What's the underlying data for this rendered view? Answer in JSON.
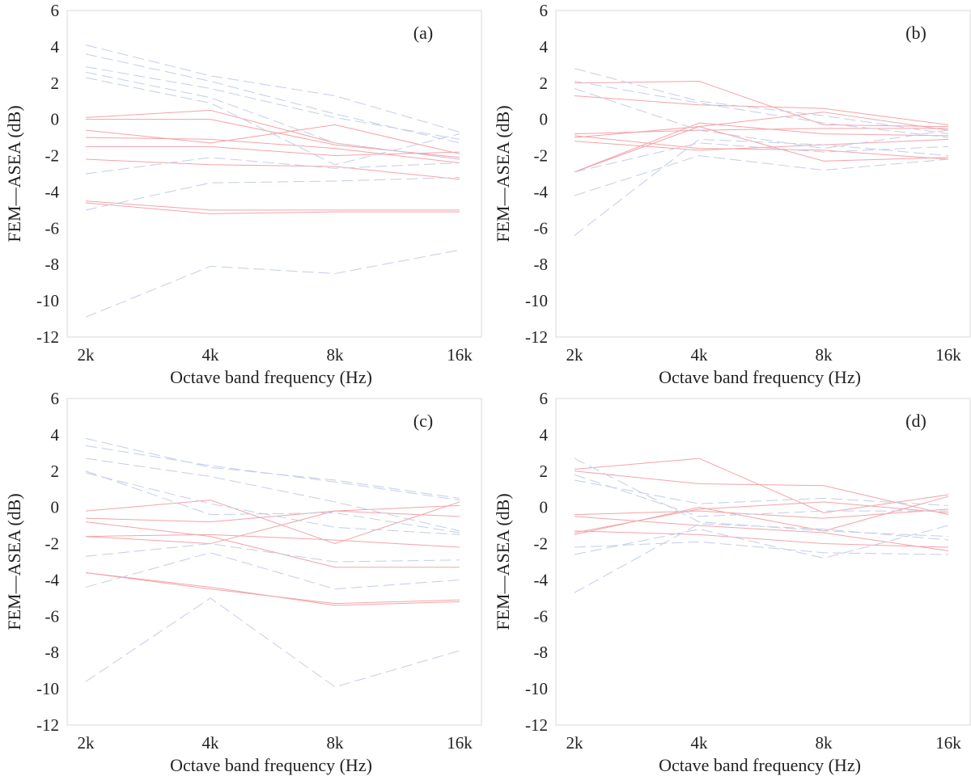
{
  "chart_data": [
    {
      "type": "line",
      "panel_label": "(a)",
      "categories": [
        "2k",
        "4k",
        "8k",
        "16k"
      ],
      "xlabel": "Octave band frequency (Hz)",
      "ylabel": "FEM—ASEA (dB)",
      "ylim": [
        -12,
        6
      ],
      "yticks": [
        "6",
        "4",
        "2",
        "0",
        "-2",
        "-4",
        "-6",
        "-8",
        "-10",
        "-12"
      ],
      "series": [
        {
          "name": "solid-1",
          "style": "solid",
          "color": "#f4a3a8",
          "values": [
            0.1,
            0.5,
            -1.3,
            -2.2
          ]
        },
        {
          "name": "solid-2",
          "style": "solid",
          "color": "#f4a3a8",
          "values": [
            0.0,
            0.0,
            -1.4,
            -2.1
          ]
        },
        {
          "name": "solid-3",
          "style": "solid",
          "color": "#f4a3a8",
          "values": [
            -0.6,
            -1.3,
            -0.3,
            -1.9
          ]
        },
        {
          "name": "solid-4",
          "style": "solid",
          "color": "#f4a3a8",
          "values": [
            -1.0,
            -1.1,
            -1.6,
            -2.4
          ]
        },
        {
          "name": "solid-5",
          "style": "solid",
          "color": "#f4a3a8",
          "values": [
            -1.5,
            -1.5,
            -2.0,
            -1.8
          ]
        },
        {
          "name": "solid-6",
          "style": "solid",
          "color": "#f4a3a8",
          "values": [
            -2.2,
            -2.5,
            -2.6,
            -3.3
          ]
        },
        {
          "name": "solid-7",
          "style": "solid",
          "color": "#f4a3a8",
          "values": [
            -4.5,
            -5.0,
            -5.0,
            -5.0
          ]
        },
        {
          "name": "solid-8",
          "style": "solid",
          "color": "#f4a3a8",
          "values": [
            -4.6,
            -5.2,
            -5.1,
            -5.1
          ]
        },
        {
          "name": "dashed-1",
          "style": "dashed",
          "color": "#c3cde8",
          "values": [
            4.1,
            2.4,
            1.3,
            -0.7
          ]
        },
        {
          "name": "dashed-2",
          "style": "dashed",
          "color": "#c3cde8",
          "values": [
            3.6,
            2.1,
            0.3,
            -1.3
          ]
        },
        {
          "name": "dashed-3",
          "style": "dashed",
          "color": "#c3cde8",
          "values": [
            2.9,
            1.7,
            0.1,
            -1.1
          ]
        },
        {
          "name": "dashed-4",
          "style": "dashed",
          "color": "#c3cde8",
          "values": [
            2.6,
            1.2,
            -1.3,
            -2.2
          ]
        },
        {
          "name": "dashed-5",
          "style": "dashed",
          "color": "#c3cde8",
          "values": [
            2.3,
            0.9,
            -2.5,
            -0.8
          ]
        },
        {
          "name": "dashed-6",
          "style": "dashed",
          "color": "#c3cde8",
          "values": [
            -3.0,
            -2.1,
            -2.7,
            -2.4
          ]
        },
        {
          "name": "dashed-7",
          "style": "dashed",
          "color": "#c3cde8",
          "values": [
            -5.0,
            -3.5,
            -3.4,
            -3.2
          ]
        },
        {
          "name": "dashed-8",
          "style": "dashed",
          "color": "#c3cde8",
          "values": [
            -10.9,
            -8.1,
            -8.5,
            -7.2
          ]
        }
      ]
    },
    {
      "type": "line",
      "panel_label": "(b)",
      "categories": [
        "2k",
        "4k",
        "8k",
        "16k"
      ],
      "xlabel": "Octave band frequency (Hz)",
      "ylabel": "FEM—ASEA (dB)",
      "ylim": [
        -12,
        6
      ],
      "yticks": [
        "6",
        "4",
        "2",
        "0",
        "-2",
        "-4",
        "-6",
        "-8",
        "-10",
        "-12"
      ],
      "series": [
        {
          "name": "solid-1",
          "style": "solid",
          "color": "#f4a3a8",
          "values": [
            2.0,
            2.1,
            -0.3,
            -0.4
          ]
        },
        {
          "name": "solid-2",
          "style": "solid",
          "color": "#f4a3a8",
          "values": [
            1.3,
            0.8,
            0.6,
            -0.3
          ]
        },
        {
          "name": "solid-3",
          "style": "solid",
          "color": "#f4a3a8",
          "values": [
            -0.8,
            -0.6,
            -0.5,
            -0.5
          ]
        },
        {
          "name": "solid-4",
          "style": "solid",
          "color": "#f4a3a8",
          "values": [
            -1.0,
            -0.4,
            0.4,
            -0.6
          ]
        },
        {
          "name": "solid-5",
          "style": "solid",
          "color": "#f4a3a8",
          "values": [
            -1.2,
            -1.7,
            -1.4,
            -1.1
          ]
        },
        {
          "name": "solid-6",
          "style": "solid",
          "color": "#f4a3a8",
          "values": [
            -2.9,
            -0.4,
            -2.3,
            -2.1
          ]
        },
        {
          "name": "solid-7",
          "style": "solid",
          "color": "#f4a3a8",
          "values": [
            -2.9,
            -0.2,
            -0.8,
            -0.9
          ]
        },
        {
          "name": "solid-8",
          "style": "solid",
          "color": "#f4a3a8",
          "values": [
            -0.9,
            -1.6,
            -1.7,
            -2.2
          ]
        },
        {
          "name": "dashed-1",
          "style": "dashed",
          "color": "#c3cde8",
          "values": [
            2.8,
            1.0,
            0.2,
            -0.8
          ]
        },
        {
          "name": "dashed-2",
          "style": "dashed",
          "color": "#c3cde8",
          "values": [
            2.1,
            0.9,
            -0.2,
            -1.0
          ]
        },
        {
          "name": "dashed-3",
          "style": "dashed",
          "color": "#c3cde8",
          "values": [
            1.7,
            -0.6,
            -1.6,
            -0.6
          ]
        },
        {
          "name": "dashed-4",
          "style": "dashed",
          "color": "#c3cde8",
          "values": [
            -2.9,
            -1.3,
            -1.8,
            -1.5
          ]
        },
        {
          "name": "dashed-5",
          "style": "dashed",
          "color": "#c3cde8",
          "values": [
            -4.2,
            -2.0,
            -2.8,
            -2.2
          ]
        },
        {
          "name": "dashed-6",
          "style": "dashed",
          "color": "#c3cde8",
          "values": [
            -6.4,
            -1.1,
            -1.4,
            -2.0
          ]
        }
      ]
    },
    {
      "type": "line",
      "panel_label": "(c)",
      "categories": [
        "2k",
        "4k",
        "8k",
        "16k"
      ],
      "xlabel": "Octave band frequency (Hz)",
      "ylabel": "FEM—ASEA (dB)",
      "ylim": [
        -12,
        6
      ],
      "yticks": [
        "6",
        "4",
        "2",
        "0",
        "-2",
        "-4",
        "-6",
        "-8",
        "-10",
        "-12"
      ],
      "series": [
        {
          "name": "solid-1",
          "style": "solid",
          "color": "#f4a3a8",
          "values": [
            -0.2,
            0.4,
            -2.0,
            0.3
          ]
        },
        {
          "name": "solid-2",
          "style": "solid",
          "color": "#f4a3a8",
          "values": [
            -0.6,
            -0.8,
            -0.2,
            -0.5
          ]
        },
        {
          "name": "solid-3",
          "style": "solid",
          "color": "#f4a3a8",
          "values": [
            -0.8,
            -1.6,
            -3.3,
            -3.3
          ]
        },
        {
          "name": "solid-4",
          "style": "solid",
          "color": "#f4a3a8",
          "values": [
            -1.6,
            -2.0,
            -0.2,
            0.1
          ]
        },
        {
          "name": "solid-5",
          "style": "solid",
          "color": "#f4a3a8",
          "values": [
            -1.6,
            -1.5,
            -1.8,
            -2.2
          ]
        },
        {
          "name": "solid-6",
          "style": "solid",
          "color": "#f4a3a8",
          "values": [
            -3.6,
            -4.5,
            -5.3,
            -5.1
          ]
        },
        {
          "name": "solid-7",
          "style": "solid",
          "color": "#f4a3a8",
          "values": [
            -3.6,
            -4.4,
            -5.4,
            -5.2
          ]
        },
        {
          "name": "dashed-1",
          "style": "dashed",
          "color": "#c3cde8",
          "values": [
            3.8,
            2.2,
            1.5,
            0.5
          ]
        },
        {
          "name": "dashed-2",
          "style": "dashed",
          "color": "#c3cde8",
          "values": [
            3.4,
            2.3,
            1.4,
            0.4
          ]
        },
        {
          "name": "dashed-3",
          "style": "dashed",
          "color": "#c3cde8",
          "values": [
            2.7,
            1.7,
            0.3,
            -1.3
          ]
        },
        {
          "name": "dashed-4",
          "style": "dashed",
          "color": "#c3cde8",
          "values": [
            2.0,
            -0.4,
            -0.3,
            -1.4
          ]
        },
        {
          "name": "dashed-5",
          "style": "dashed",
          "color": "#c3cde8",
          "values": [
            1.9,
            0.2,
            -1.1,
            -1.5
          ]
        },
        {
          "name": "dashed-6",
          "style": "dashed",
          "color": "#c3cde8",
          "values": [
            -2.7,
            -2.0,
            -3.0,
            -2.9
          ]
        },
        {
          "name": "dashed-7",
          "style": "dashed",
          "color": "#c3cde8",
          "values": [
            -4.4,
            -2.5,
            -4.5,
            -4.0
          ]
        },
        {
          "name": "dashed-8",
          "style": "dashed",
          "color": "#c3cde8",
          "values": [
            -9.6,
            -5.0,
            -9.9,
            -7.9
          ]
        }
      ]
    },
    {
      "type": "line",
      "panel_label": "(d)",
      "categories": [
        "2k",
        "4k",
        "8k",
        "16k"
      ],
      "xlabel": "Octave band frequency (Hz)",
      "ylabel": "FEM—ASEA (dB)",
      "ylim": [
        -12,
        6
      ],
      "yticks": [
        "6",
        "4",
        "2",
        "0",
        "-2",
        "-4",
        "-6",
        "-8",
        "-10",
        "-12"
      ],
      "series": [
        {
          "name": "solid-1",
          "style": "solid",
          "color": "#f4a3a8",
          "values": [
            2.1,
            2.7,
            -0.3,
            0.7
          ]
        },
        {
          "name": "solid-2",
          "style": "solid",
          "color": "#f4a3a8",
          "values": [
            2.0,
            1.3,
            1.2,
            -0.4
          ]
        },
        {
          "name": "solid-3",
          "style": "solid",
          "color": "#f4a3a8",
          "values": [
            -0.4,
            -0.2,
            -0.6,
            -0.1
          ]
        },
        {
          "name": "solid-4",
          "style": "solid",
          "color": "#f4a3a8",
          "values": [
            -0.5,
            -1.0,
            -1.4,
            -2.4
          ]
        },
        {
          "name": "solid-5",
          "style": "solid",
          "color": "#f4a3a8",
          "values": [
            -1.3,
            -1.5,
            -2.0,
            -2.2
          ]
        },
        {
          "name": "solid-6",
          "style": "solid",
          "color": "#f4a3a8",
          "values": [
            -1.5,
            0.0,
            -1.3,
            0.6
          ]
        },
        {
          "name": "solid-7",
          "style": "solid",
          "color": "#f4a3a8",
          "values": [
            -1.4,
            -0.1,
            0.3,
            -0.3
          ]
        },
        {
          "name": "dashed-1",
          "style": "dashed",
          "color": "#c3cde8",
          "values": [
            2.7,
            -0.8,
            -1.3,
            -1.6
          ]
        },
        {
          "name": "dashed-2",
          "style": "dashed",
          "color": "#c3cde8",
          "values": [
            1.8,
            -0.5,
            -0.2,
            -0.2
          ]
        },
        {
          "name": "dashed-3",
          "style": "dashed",
          "color": "#c3cde8",
          "values": [
            1.5,
            0.2,
            0.5,
            0.1
          ]
        },
        {
          "name": "dashed-4",
          "style": "dashed",
          "color": "#c3cde8",
          "values": [
            -2.2,
            -1.9,
            -2.5,
            -2.6
          ]
        },
        {
          "name": "dashed-5",
          "style": "dashed",
          "color": "#c3cde8",
          "values": [
            -2.6,
            -1.2,
            -2.8,
            -1.0
          ]
        },
        {
          "name": "dashed-6",
          "style": "dashed",
          "color": "#c3cde8",
          "values": [
            -4.7,
            -0.9,
            -1.2,
            -1.8
          ]
        }
      ]
    }
  ]
}
